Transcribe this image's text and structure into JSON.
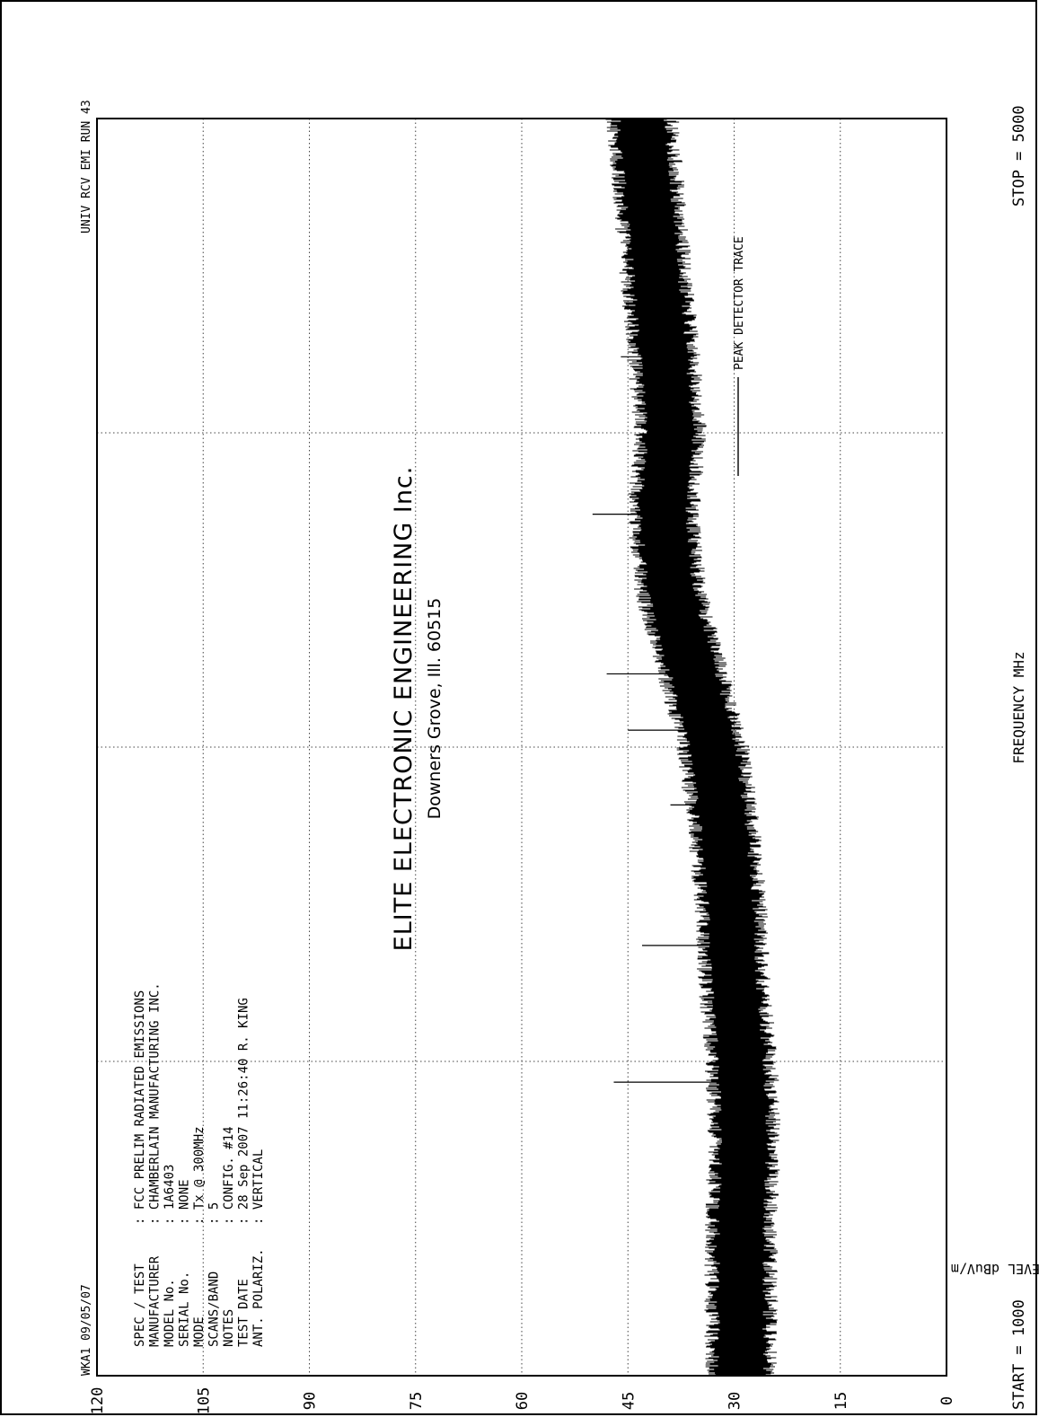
{
  "header": {
    "company": "ELITE ELECTRONIC ENGINEERING Inc.",
    "address": "Downers Grove, Ill. 60515",
    "left_tag": "WKA1  09/05/07",
    "right_tag": "UNIV RCV EMI  RUN 43"
  },
  "info": [
    {
      "label": "SPEC / TEST",
      "value": ": FCC PRELIM RADIATED EMISSIONS"
    },
    {
      "label": "MANUFACTURER",
      "value": ": CHAMBERLAIN MANUFACTURING INC."
    },
    {
      "label": "MODEL No.",
      "value": ": 1A6403"
    },
    {
      "label": "SERIAL No.",
      "value": ": NONE"
    },
    {
      "label": "MODE",
      "value": ": Tx @ 300MHz"
    },
    {
      "label": "SCANS/BAND",
      "value": ": 5"
    },
    {
      "label": "NOTES",
      "value": ": CONFIG. #14"
    },
    {
      "label": "TEST DATE",
      "value": ": 28 Sep 2007 11:26:40  R. KING"
    },
    {
      "label": "ANT. POLARIZ.",
      "value": ": VERTICAL"
    }
  ],
  "footer": {
    "start": "START = 1000",
    "stop": "STOP = 5000",
    "xlabel": "FREQUENCY  MHz"
  },
  "chart_data": {
    "type": "line",
    "title": "ELITE ELECTRONIC ENGINEERING Inc.",
    "xlabel": "FREQUENCY  MHz",
    "ylabel": "LEVEL dBuV/m",
    "xlim": [
      1000,
      5000
    ],
    "ylim": [
      0,
      120
    ],
    "yticks": [
      "0",
      "15",
      "30",
      "45",
      "60",
      "75",
      "90",
      "105",
      "120"
    ],
    "legend": "PEAK  DETECTOR TRACE",
    "legend_position": "top-right",
    "grid": "dotted",
    "series": [
      {
        "name": "PEAK  DETECTOR TRACE",
        "x": [
          1000,
          1250,
          1500,
          1750,
          2000,
          2250,
          2500,
          2750,
          3000,
          3250,
          3500,
          3750,
          4000,
          4250,
          4500,
          4750,
          5000
        ],
        "values": [
          29,
          29,
          29,
          28.5,
          29,
          30,
          30.5,
          31.5,
          33,
          36,
          39,
          40,
          39,
          40,
          41,
          42,
          43
        ]
      }
    ],
    "spikes": [
      {
        "x": 1934,
        "value": 47
      },
      {
        "x": 2369,
        "value": 43
      },
      {
        "x": 2816,
        "value": 39
      },
      {
        "x": 3054,
        "value": 45
      },
      {
        "x": 3233,
        "value": 48
      },
      {
        "x": 3741,
        "value": 50
      },
      {
        "x": 4242,
        "value": 46
      },
      {
        "x": 4773,
        "value": 45
      }
    ]
  }
}
